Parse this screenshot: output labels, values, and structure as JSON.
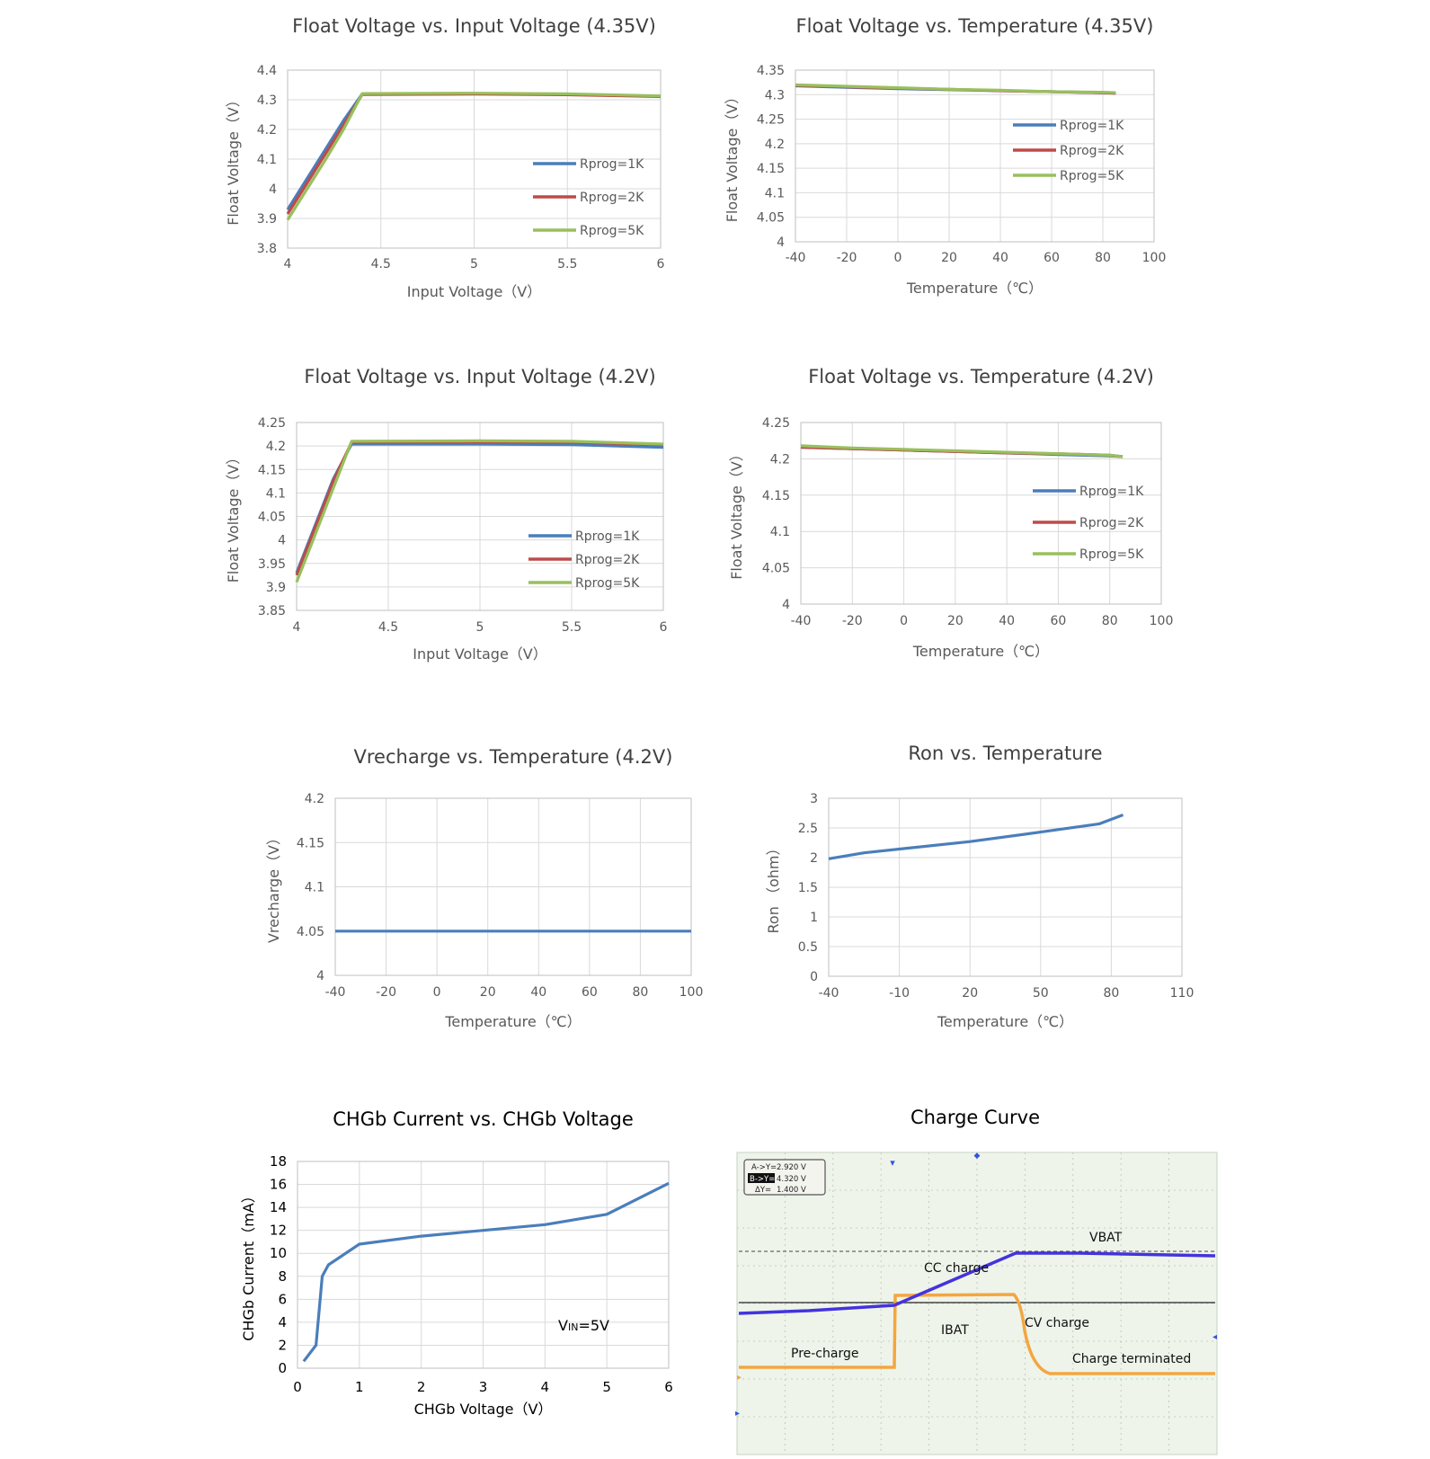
{
  "colors": {
    "r1k": "#4A7EBB",
    "r2k": "#BE4B48",
    "r5k": "#98C05C",
    "grid": "#d9d9d9",
    "axis": "#bfbfbf",
    "text": "#595959",
    "title": "#404040",
    "scope_bg": "#eef4ea",
    "vbat": "#4433dd",
    "ibat": "#f4a640"
  },
  "chart_data": [
    {
      "id": "c1",
      "type": "line",
      "title": "Float Voltage vs. Input Voltage (4.35V)",
      "xlabel": "Input Voltage（V）",
      "ylabel": "Float Voltage（V）",
      "xlim": [
        4,
        6
      ],
      "ylim": [
        3.8,
        4.4
      ],
      "xticks": [
        4,
        4.5,
        5,
        5.5,
        6
      ],
      "xtick_labels": [
        "4",
        "4.5",
        "5",
        "5.5",
        "6"
      ],
      "yticks": [
        3.8,
        3.9,
        4.0,
        4.1,
        4.2,
        4.3,
        4.4
      ],
      "ytick_labels": [
        "3.8",
        "3.9",
        "4",
        "4.1",
        "4.2",
        "4.3",
        "4.4"
      ],
      "grid": true,
      "legend": "right",
      "series": [
        {
          "name": "Rprog=1K",
          "color_key": "r1k",
          "x": [
            4,
            4.1,
            4.2,
            4.3,
            4.4,
            5,
            5.5,
            6
          ],
          "y": [
            3.93,
            4.03,
            4.13,
            4.23,
            4.32,
            4.321,
            4.318,
            4.312
          ]
        },
        {
          "name": "Rprog=2K",
          "color_key": "r2k",
          "x": [
            4,
            4.1,
            4.2,
            4.3,
            4.4,
            5,
            5.5,
            6
          ],
          "y": [
            3.915,
            4.015,
            4.115,
            4.215,
            4.318,
            4.319,
            4.317,
            4.311
          ]
        },
        {
          "name": "Rprog=5K",
          "color_key": "r5k",
          "x": [
            4,
            4.1,
            4.2,
            4.3,
            4.4,
            5,
            5.5,
            6
          ],
          "y": [
            3.895,
            3.995,
            4.095,
            4.2,
            4.321,
            4.322,
            4.32,
            4.313
          ]
        }
      ]
    },
    {
      "id": "c2",
      "type": "line",
      "title": "Float Voltage vs. Temperature (4.35V)",
      "xlabel": "Temperature（℃）",
      "ylabel": "Float Voltage（V）",
      "xlim": [
        -40,
        100
      ],
      "ylim": [
        4,
        4.35
      ],
      "xticks": [
        -40,
        -20,
        0,
        20,
        40,
        60,
        80,
        100
      ],
      "xtick_labels": [
        "-40",
        "-20",
        "0",
        "20",
        "40",
        "60",
        "80",
        "100"
      ],
      "yticks": [
        4,
        4.05,
        4.1,
        4.15,
        4.2,
        4.25,
        4.3,
        4.35
      ],
      "ytick_labels": [
        "4",
        "4.05",
        "4.1",
        "4.15",
        "4.2",
        "4.25",
        "4.3",
        "4.35"
      ],
      "grid": true,
      "legend": "right",
      "series": [
        {
          "name": "Rprog=1K",
          "color_key": "r1k",
          "x": [
            -40,
            -20,
            0,
            20,
            40,
            60,
            80,
            85
          ],
          "y": [
            4.318,
            4.315,
            4.312,
            4.31,
            4.308,
            4.306,
            4.304,
            4.303
          ]
        },
        {
          "name": "Rprog=2K",
          "color_key": "r2k",
          "x": [
            -40,
            -20,
            0,
            20,
            40,
            60,
            80,
            85
          ],
          "y": [
            4.319,
            4.316,
            4.313,
            4.311,
            4.308,
            4.306,
            4.304,
            4.303
          ]
        },
        {
          "name": "Rprog=5K",
          "color_key": "r5k",
          "x": [
            -40,
            -20,
            0,
            20,
            40,
            60,
            80,
            85
          ],
          "y": [
            4.32,
            4.317,
            4.314,
            4.311,
            4.309,
            4.306,
            4.305,
            4.304
          ]
        }
      ]
    },
    {
      "id": "c3",
      "type": "line",
      "title": "Float Voltage vs. Input Voltage (4.2V)",
      "xlabel": "Input Voltage（V）",
      "ylabel": "Float Voltage（V）",
      "xlim": [
        4,
        6
      ],
      "ylim": [
        3.85,
        4.25
      ],
      "xticks": [
        4,
        4.5,
        5,
        5.5,
        6
      ],
      "xtick_labels": [
        "4",
        "4.5",
        "5",
        "5.5",
        "6"
      ],
      "yticks": [
        3.85,
        3.9,
        3.95,
        4.0,
        4.05,
        4.1,
        4.15,
        4.2,
        4.25
      ],
      "ytick_labels": [
        "3.85",
        "3.9",
        "3.95",
        "4",
        "4.05",
        "4.1",
        "4.15",
        "4.2",
        "4.25"
      ],
      "grid": true,
      "legend": "right",
      "series": [
        {
          "name": "Rprog=1K",
          "color_key": "r1k",
          "x": [
            4,
            4.1,
            4.2,
            4.3,
            5,
            5.5,
            6
          ],
          "y": [
            3.93,
            4.03,
            4.13,
            4.204,
            4.204,
            4.203,
            4.197
          ]
        },
        {
          "name": "Rprog=2K",
          "color_key": "r2k",
          "x": [
            4,
            4.1,
            4.2,
            4.3,
            5,
            5.5,
            6
          ],
          "y": [
            3.925,
            4.025,
            4.125,
            4.208,
            4.209,
            4.208,
            4.203
          ]
        },
        {
          "name": "Rprog=5K",
          "color_key": "r5k",
          "x": [
            4,
            4.1,
            4.2,
            4.3,
            5,
            5.5,
            6
          ],
          "y": [
            3.91,
            4.01,
            4.11,
            4.21,
            4.211,
            4.21,
            4.204
          ]
        }
      ]
    },
    {
      "id": "c4",
      "type": "line",
      "title": "Float Voltage vs. Temperature (4.2V)",
      "xlabel": "Temperature（℃）",
      "ylabel": "Float Voltage（V）",
      "xlim": [
        -40,
        100
      ],
      "ylim": [
        4,
        4.25
      ],
      "xticks": [
        -40,
        -20,
        0,
        20,
        40,
        60,
        80,
        100
      ],
      "xtick_labels": [
        "-40",
        "-20",
        "0",
        "20",
        "40",
        "60",
        "80",
        "100"
      ],
      "yticks": [
        4,
        4.05,
        4.1,
        4.15,
        4.2,
        4.25
      ],
      "ytick_labels": [
        "4",
        "4.05",
        "4.1",
        "4.15",
        "4.2",
        "4.25"
      ],
      "grid": true,
      "legend": "right",
      "series": [
        {
          "name": "Rprog=1K",
          "color_key": "r1k",
          "x": [
            -40,
            -20,
            0,
            20,
            40,
            60,
            80,
            85
          ],
          "y": [
            4.216,
            4.214,
            4.212,
            4.21,
            4.208,
            4.206,
            4.204,
            4.203
          ]
        },
        {
          "name": "Rprog=2K",
          "color_key": "r2k",
          "x": [
            -40,
            -20,
            0,
            20,
            40,
            60,
            80,
            85
          ],
          "y": [
            4.216,
            4.214,
            4.212,
            4.21,
            4.208,
            4.207,
            4.205,
            4.203
          ]
        },
        {
          "name": "Rprog=5K",
          "color_key": "r5k",
          "x": [
            -40,
            -20,
            0,
            20,
            40,
            60,
            80,
            85
          ],
          "y": [
            4.218,
            4.215,
            4.213,
            4.211,
            4.209,
            4.207,
            4.205,
            4.203
          ]
        }
      ]
    },
    {
      "id": "c5",
      "type": "line",
      "title": "Vrecharge vs. Temperature (4.2V)",
      "xlabel": "Temperature（℃）",
      "ylabel": "Vrecharge（V）",
      "xlim": [
        -40,
        100
      ],
      "ylim": [
        4,
        4.2
      ],
      "xticks": [
        -40,
        -20,
        0,
        20,
        40,
        60,
        80,
        100
      ],
      "xtick_labels": [
        "-40",
        "-20",
        "0",
        "20",
        "40",
        "60",
        "80",
        "100"
      ],
      "yticks": [
        4,
        4.05,
        4.1,
        4.15,
        4.2
      ],
      "ytick_labels": [
        "4",
        "4.05",
        "4.1",
        "4.15",
        "4.2"
      ],
      "grid": true,
      "legend": "none",
      "series": [
        {
          "color_key": "r1k",
          "x": [
            -40,
            100
          ],
          "y": [
            4.05,
            4.05
          ]
        }
      ]
    },
    {
      "id": "c6",
      "type": "line",
      "title": "Ron  vs. Temperature",
      "xlabel": "Temperature（℃）",
      "ylabel": "Ron （ohm）",
      "xlim": [
        -40,
        110
      ],
      "ylim": [
        0,
        3
      ],
      "xticks": [
        -40,
        -10,
        20,
        50,
        80,
        110
      ],
      "xtick_labels": [
        "-40",
        "-10",
        "20",
        "50",
        "80",
        "110"
      ],
      "yticks": [
        0,
        0.5,
        1,
        1.5,
        2,
        2.5,
        3
      ],
      "ytick_labels": [
        "0",
        "0.5",
        "1",
        "1.5",
        "2",
        "2.5",
        "3"
      ],
      "grid": true,
      "legend": "none",
      "series": [
        {
          "color_key": "r1k",
          "x": [
            -40,
            -25,
            20,
            50,
            75,
            85
          ],
          "y": [
            1.98,
            2.08,
            2.27,
            2.43,
            2.57,
            2.72
          ]
        }
      ]
    },
    {
      "id": "c7",
      "type": "line",
      "title": "CHGb Current vs. CHGb Voltage",
      "xlabel": "CHGb Voltage（V）",
      "ylabel": "CHGb Current（mA）",
      "xlim": [
        0,
        6
      ],
      "ylim": [
        0,
        18
      ],
      "xticks": [
        0,
        1,
        2,
        3,
        4,
        5,
        6
      ],
      "xtick_labels": [
        "0",
        "1",
        "2",
        "3",
        "4",
        "5",
        "6"
      ],
      "yticks": [
        0,
        2,
        4,
        6,
        8,
        10,
        12,
        14,
        16,
        18
      ],
      "ytick_labels": [
        "0",
        "2",
        "4",
        "6",
        "8",
        "10",
        "12",
        "14",
        "16",
        "18"
      ],
      "grid": true,
      "legend": "none",
      "annotation": {
        "main": "V",
        "sub": "IN",
        "rest": "=5V"
      },
      "series": [
        {
          "color_key": "r1k",
          "x": [
            0.1,
            0.3,
            0.4,
            0.5,
            1,
            2,
            3,
            4,
            5,
            6
          ],
          "y": [
            0.6,
            2,
            8,
            9,
            10.8,
            11.5,
            12,
            12.5,
            13.4,
            16.1
          ]
        }
      ]
    }
  ],
  "scope": {
    "title": "Charge Curve",
    "readout": [
      {
        "key": "A->Y=",
        "value": "2.920 V"
      },
      {
        "key": "B->Y=",
        "value": "4.320 V"
      },
      {
        "key": "ΔY=",
        "value": "1.400 V"
      }
    ],
    "labels": {
      "vbat": "VBAT",
      "cc": "CC charge",
      "ibat": "IBAT",
      "cv": "CV charge",
      "pre": "Pre-charge",
      "term": "Charge  terminated"
    }
  }
}
